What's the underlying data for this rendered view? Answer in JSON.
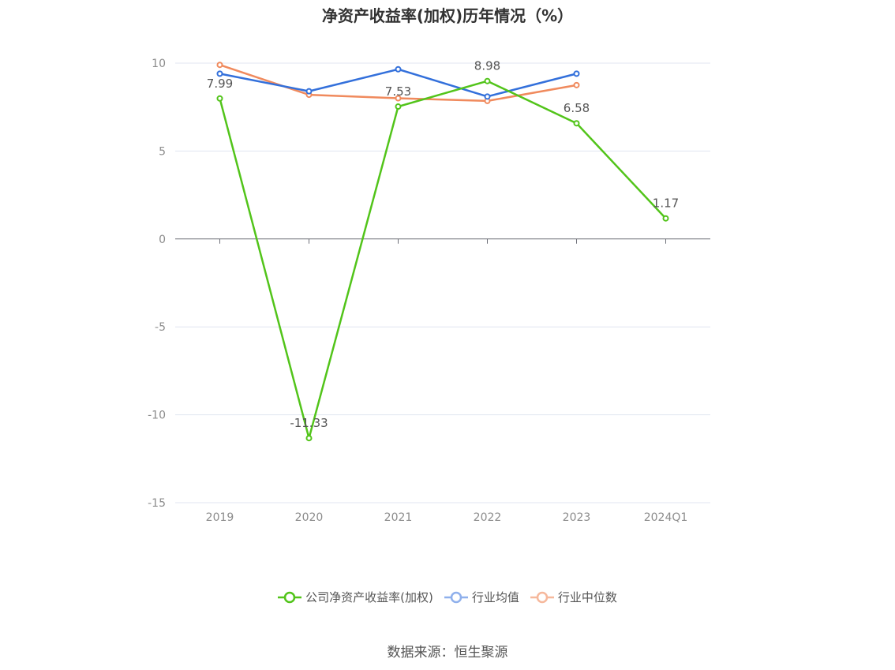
{
  "title": "净资产收益率(加权)历年情况（%）",
  "source": "数据来源：恒生聚源",
  "chart_data": {
    "type": "line",
    "categories": [
      "2019",
      "2020",
      "2021",
      "2022",
      "2023",
      "2024Q1"
    ],
    "ylim": [
      -15,
      10
    ],
    "yticks": [
      10,
      5,
      0,
      -5,
      -10,
      -15
    ],
    "grid": true,
    "legend_position": "bottom",
    "series": [
      {
        "name": "公司净资产收益率(加权)",
        "color": "#52c41a",
        "values": [
          7.99,
          -11.33,
          7.53,
          8.98,
          6.58,
          1.17
        ],
        "labels": [
          "7.99",
          "-11.33",
          "7.53",
          "8.98",
          "6.58",
          "1.17"
        ]
      },
      {
        "name": "行业均值",
        "color": "#3370db",
        "values": [
          9.4,
          8.4,
          9.65,
          8.1,
          9.4,
          null
        ]
      },
      {
        "name": "行业中位数",
        "color": "#f08a5d",
        "values": [
          9.9,
          8.2,
          8.0,
          7.85,
          8.75,
          null
        ]
      }
    ]
  }
}
